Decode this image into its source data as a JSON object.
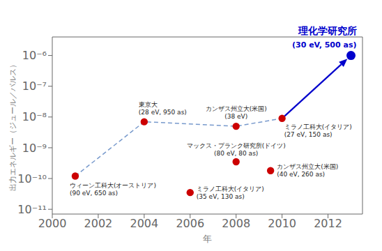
{
  "chart_data": {
    "type": "scatter",
    "xlabel": "年",
    "ylabel": "出力エネルギー（ジュール／パルス）",
    "log": "y",
    "grid": false,
    "xlim": [
      2000,
      2013.5
    ],
    "ylim": [
      7e-12,
      4e-06
    ],
    "xticks": [
      2000,
      2002,
      2004,
      2006,
      2008,
      2010,
      2012
    ],
    "yticks": [
      {
        "value": 1e-11,
        "label": "10⁻¹¹"
      },
      {
        "value": 1e-10,
        "label": "10⁻¹⁰"
      },
      {
        "value": 1e-09,
        "label": "10⁻⁹"
      },
      {
        "value": 1e-08,
        "label": "10⁻⁸"
      },
      {
        "value": 1e-07,
        "label": "10⁻⁷"
      },
      {
        "value": 1e-06,
        "label": "10⁻⁶"
      }
    ],
    "marker": "circle",
    "x": [
      2001,
      2004,
      2006,
      2008,
      2008,
      2009.5,
      2010,
      2013
    ],
    "values": [
      1.2e-10,
      7e-09,
      3.5e-11,
      5e-09,
      3.5e-10,
      1.8e-10,
      9e-09,
      1e-06
    ],
    "colors": [
      "#cc0000",
      "#cc0000",
      "#cc0000",
      "#cc0000",
      "#cc0000",
      "#cc0000",
      "#cc0000",
      "#0000cc"
    ],
    "labels": [
      [
        "ウィーン工科大(オーストリア)",
        "(90 eV, 650 as)"
      ],
      [
        "東京大",
        "(28 eV, 950 as)"
      ],
      [
        "ミラノ工科大(イタリア)",
        "(35 eV, 130 as)"
      ],
      [
        "カンザス州立大(米国)",
        "(38 eV)"
      ],
      [
        "マックス・プランク研究所(ドイツ)",
        "(80 eV, 80 as)"
      ],
      [
        "カンザス州立大(米国)",
        "(40 eV, 260 as)"
      ],
      [
        "ミラノ工科大(イタリア)",
        "(27 eV, 150 as)"
      ],
      [
        "理化学研究所",
        "(30 eV, 500 as)"
      ]
    ],
    "trend": {
      "type": "line",
      "line_style": "dashed",
      "color": "#7799cc",
      "x": [
        2001,
        2004,
        2008,
        2010
      ],
      "values": [
        1.2e-10,
        7e-09,
        5e-09,
        9e-09
      ]
    },
    "annotations": [
      {
        "type": "arrow",
        "from": [
          2010,
          9e-09
        ],
        "to": [
          2013,
          1e-06
        ],
        "color": "#0000cc"
      }
    ]
  }
}
